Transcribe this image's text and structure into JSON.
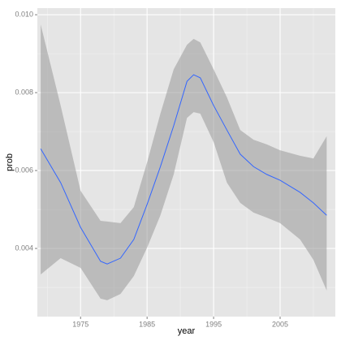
{
  "chart_data": {
    "type": "smooth",
    "xlabel": "year",
    "ylabel": "prob",
    "x": [
      1969,
      1972,
      1975,
      1978,
      1979,
      1981,
      1983,
      1985,
      1987,
      1989,
      1991,
      1992,
      1993,
      1995,
      1997,
      1999,
      2001,
      2003,
      2005,
      2008,
      2010,
      2012
    ],
    "values": [
      0.00656,
      0.00569,
      0.00454,
      0.00367,
      0.0036,
      0.00375,
      0.00423,
      0.00513,
      0.0061,
      0.00715,
      0.00829,
      0.00846,
      0.00838,
      0.00767,
      0.00704,
      0.00642,
      0.0061,
      0.0059,
      0.00575,
      0.00544,
      0.00517,
      0.00485
    ],
    "upper": [
      0.00975,
      0.00767,
      0.00548,
      0.00471,
      0.00469,
      0.00465,
      0.00506,
      0.00621,
      0.00746,
      0.0086,
      0.00923,
      0.00938,
      0.00929,
      0.0086,
      0.00788,
      0.00704,
      0.00679,
      0.00667,
      0.00652,
      0.00638,
      0.00631,
      0.00688
    ],
    "lower": [
      0.00333,
      0.00375,
      0.0035,
      0.00271,
      0.00267,
      0.00283,
      0.00329,
      0.00402,
      0.00485,
      0.0059,
      0.00735,
      0.0075,
      0.00746,
      0.00673,
      0.00569,
      0.00517,
      0.00492,
      0.00479,
      0.00465,
      0.00423,
      0.00371,
      0.00292
    ],
    "color": "#3366ff",
    "band_color": "#999999",
    "xlim": [
      1968.5,
      2013.3
    ],
    "ylim": [
      0.00225,
      0.01017
    ],
    "xticks": [
      1975,
      1985,
      1995,
      2005
    ],
    "yticks": [
      0.004,
      0.006,
      0.008,
      {
        "value": 0.01,
        "label": "0.010"
      }
    ],
    "minor_xticks": [
      1970,
      1980,
      1990,
      2000,
      2010
    ],
    "minor_yticks": [
      0.003,
      0.005,
      0.007,
      0.009
    ],
    "grid": true
  }
}
